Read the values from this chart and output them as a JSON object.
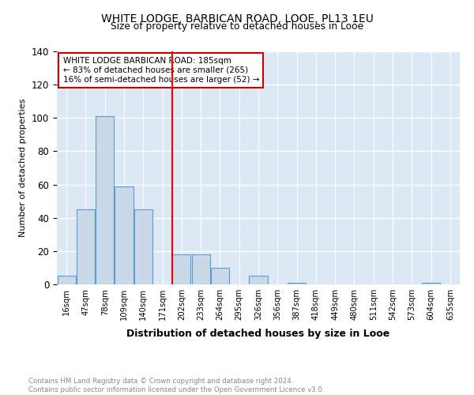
{
  "title": "WHITE LODGE, BARBICAN ROAD, LOOE, PL13 1EU",
  "subtitle": "Size of property relative to detached houses in Looe",
  "xlabel": "Distribution of detached houses by size in Looe",
  "ylabel": "Number of detached properties",
  "footnote": "Contains HM Land Registry data © Crown copyright and database right 2024.\nContains public sector information licensed under the Open Government Licence v3.0.",
  "bins": [
    "16sqm",
    "47sqm",
    "78sqm",
    "109sqm",
    "140sqm",
    "171sqm",
    "202sqm",
    "233sqm",
    "264sqm",
    "295sqm",
    "326sqm",
    "356sqm",
    "387sqm",
    "418sqm",
    "449sqm",
    "480sqm",
    "511sqm",
    "542sqm",
    "573sqm",
    "604sqm",
    "635sqm"
  ],
  "values": [
    5,
    45,
    101,
    59,
    45,
    0,
    18,
    18,
    10,
    0,
    5,
    0,
    1,
    0,
    0,
    0,
    0,
    0,
    0,
    1,
    0
  ],
  "bar_color": "#c9d9e8",
  "bar_edge_color": "#5b9bd5",
  "red_line_x": 5.5,
  "annotation_title": "WHITE LODGE BARBICAN ROAD: 185sqm",
  "annotation_line1": "← 83% of detached houses are smaller (265)",
  "annotation_line2": "16% of semi-detached houses are larger (52) →",
  "annotation_box_color": "#ffffff",
  "annotation_box_edge": "#cc0000",
  "ylim": [
    0,
    140
  ],
  "yticks": [
    0,
    20,
    40,
    60,
    80,
    100,
    120,
    140
  ],
  "background_color": "#dce9f5"
}
